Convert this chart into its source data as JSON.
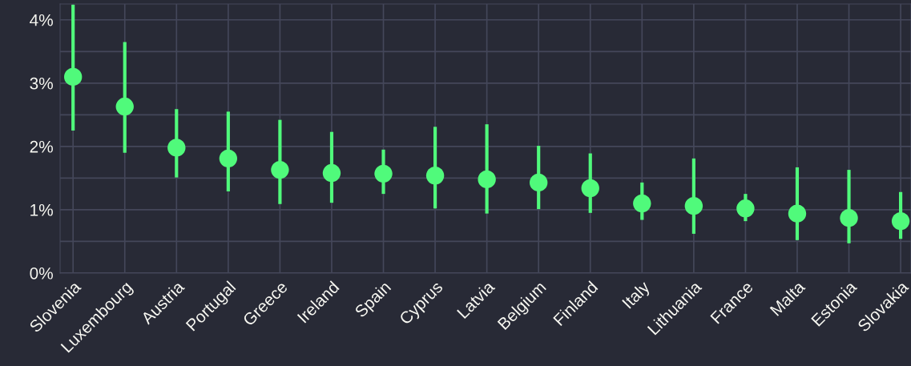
{
  "chart_data": {
    "type": "scatter",
    "categories": [
      "Slovenia",
      "Luxembourg",
      "Austria",
      "Portugal",
      "Greece",
      "Ireland",
      "Spain",
      "Cyprus",
      "Latvia",
      "Belgium",
      "Finland",
      "Italy",
      "Lithuania",
      "France",
      "Malta",
      "Estonia",
      "Slovakia"
    ],
    "series": [
      {
        "color": "#50fa7b",
        "values": [
          3.1,
          2.63,
          1.98,
          1.81,
          1.63,
          1.58,
          1.57,
          1.54,
          1.48,
          1.43,
          1.34,
          1.1,
          1.06,
          1.02,
          0.94,
          0.87,
          0.82
        ],
        "errors": [
          [
            2.25,
            4.24
          ],
          [
            1.9,
            3.65
          ],
          [
            1.51,
            2.59
          ],
          [
            1.29,
            2.55
          ],
          [
            1.09,
            2.42
          ],
          [
            1.11,
            2.23
          ],
          [
            1.25,
            1.95
          ],
          [
            1.02,
            2.31
          ],
          [
            0.94,
            2.35
          ],
          [
            1.01,
            2.01
          ],
          [
            0.95,
            1.89
          ],
          [
            0.84,
            1.43
          ],
          [
            0.62,
            1.81
          ],
          [
            0.82,
            1.25
          ],
          [
            0.52,
            1.67
          ],
          [
            0.47,
            1.63
          ],
          [
            0.54,
            1.28
          ]
        ]
      }
    ],
    "ylim": [
      0,
      4.25
    ],
    "yticks": [
      {
        "value": 0,
        "label": "0%"
      },
      {
        "value": 0.5,
        "label": null
      },
      {
        "value": 1,
        "label": "1%"
      },
      {
        "value": 1.5,
        "label": null
      },
      {
        "value": 2,
        "label": "2%"
      },
      {
        "value": 2.5,
        "label": null
      },
      {
        "value": 3,
        "label": "3%"
      },
      {
        "value": 3.5,
        "label": null
      },
      {
        "value": 4,
        "label": "4%"
      }
    ],
    "grid": true,
    "marker": "circle",
    "legend": false
  }
}
